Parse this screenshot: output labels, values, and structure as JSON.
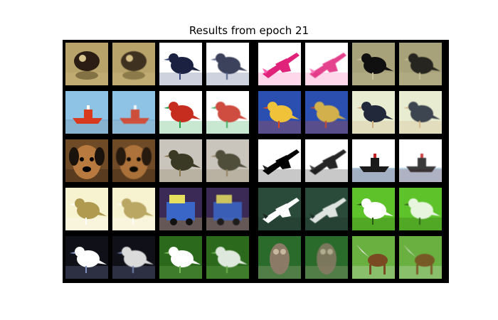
{
  "figure": {
    "title": "Results from epoch 21"
  },
  "grid": {
    "rows": 5,
    "pairs_per_row": 4,
    "pair_layout": [
      "original",
      "reconstruction"
    ]
  },
  "samples": [
    {
      "subject": "frog",
      "background": "#b8a46a",
      "object_color": "#2b1d14",
      "accent": "#d9c48c"
    },
    {
      "subject": "bird",
      "background": "#ffffff",
      "object_color": "#1b2140",
      "accent": "#3a4a7a"
    },
    {
      "subject": "airplane",
      "background": "#ffffff",
      "object_color": "#e0227a",
      "accent": "#ff5fb0"
    },
    {
      "subject": "bird",
      "background": "#a7a27a",
      "object_color": "#101010",
      "accent": "#c9c29a"
    },
    {
      "subject": "ship",
      "background": "#8fc3e6",
      "object_color": "#d83a1e",
      "accent": "#ffffff"
    },
    {
      "subject": "bird",
      "background": "#ffffff",
      "object_color": "#c62d1f",
      "accent": "#27a34a"
    },
    {
      "subject": "bird",
      "background": "#2a4fb0",
      "object_color": "#f0c23a",
      "accent": "#e04a1a"
    },
    {
      "subject": "bird",
      "background": "#e8ecd0",
      "object_color": "#20283a",
      "accent": "#d0b080"
    },
    {
      "subject": "dog",
      "background": "#6e4a26",
      "object_color": "#b87a3e",
      "accent": "#1a120c"
    },
    {
      "subject": "bird",
      "background": "#c9c5bc",
      "object_color": "#3a3a24",
      "accent": "#8c7a52"
    },
    {
      "subject": "airplane",
      "background": "#ffffff",
      "object_color": "#000000",
      "accent": "#222222"
    },
    {
      "subject": "ship",
      "background": "#ffffff",
      "object_color": "#1a1a1a",
      "accent": "#c02020"
    },
    {
      "subject": "bird",
      "background": "#f7f2d0",
      "object_color": "#b09a50",
      "accent": "#ffffff"
    },
    {
      "subject": "truck",
      "background": "#3b2a55",
      "object_color": "#3a66c8",
      "accent": "#e6e060"
    },
    {
      "subject": "airplane",
      "background": "#2a4a3a",
      "object_color": "#ffffff",
      "accent": "#1a2a22"
    },
    {
      "subject": "bird",
      "background": "#5ec22a",
      "object_color": "#ffffff",
      "accent": "#2a5a16"
    },
    {
      "subject": "bird",
      "background": "#101018",
      "object_color": "#ffffff",
      "accent": "#8090c0"
    },
    {
      "subject": "bird",
      "background": "#2b6a1c",
      "object_color": "#ffffff",
      "accent": "#7ab85a"
    },
    {
      "subject": "owl",
      "background": "#2a6a2a",
      "object_color": "#8a7a66",
      "accent": "#c8b8a0"
    },
    {
      "subject": "deer",
      "background": "#6ab040",
      "object_color": "#7a4a22",
      "accent": "#e8e8e8"
    }
  ]
}
